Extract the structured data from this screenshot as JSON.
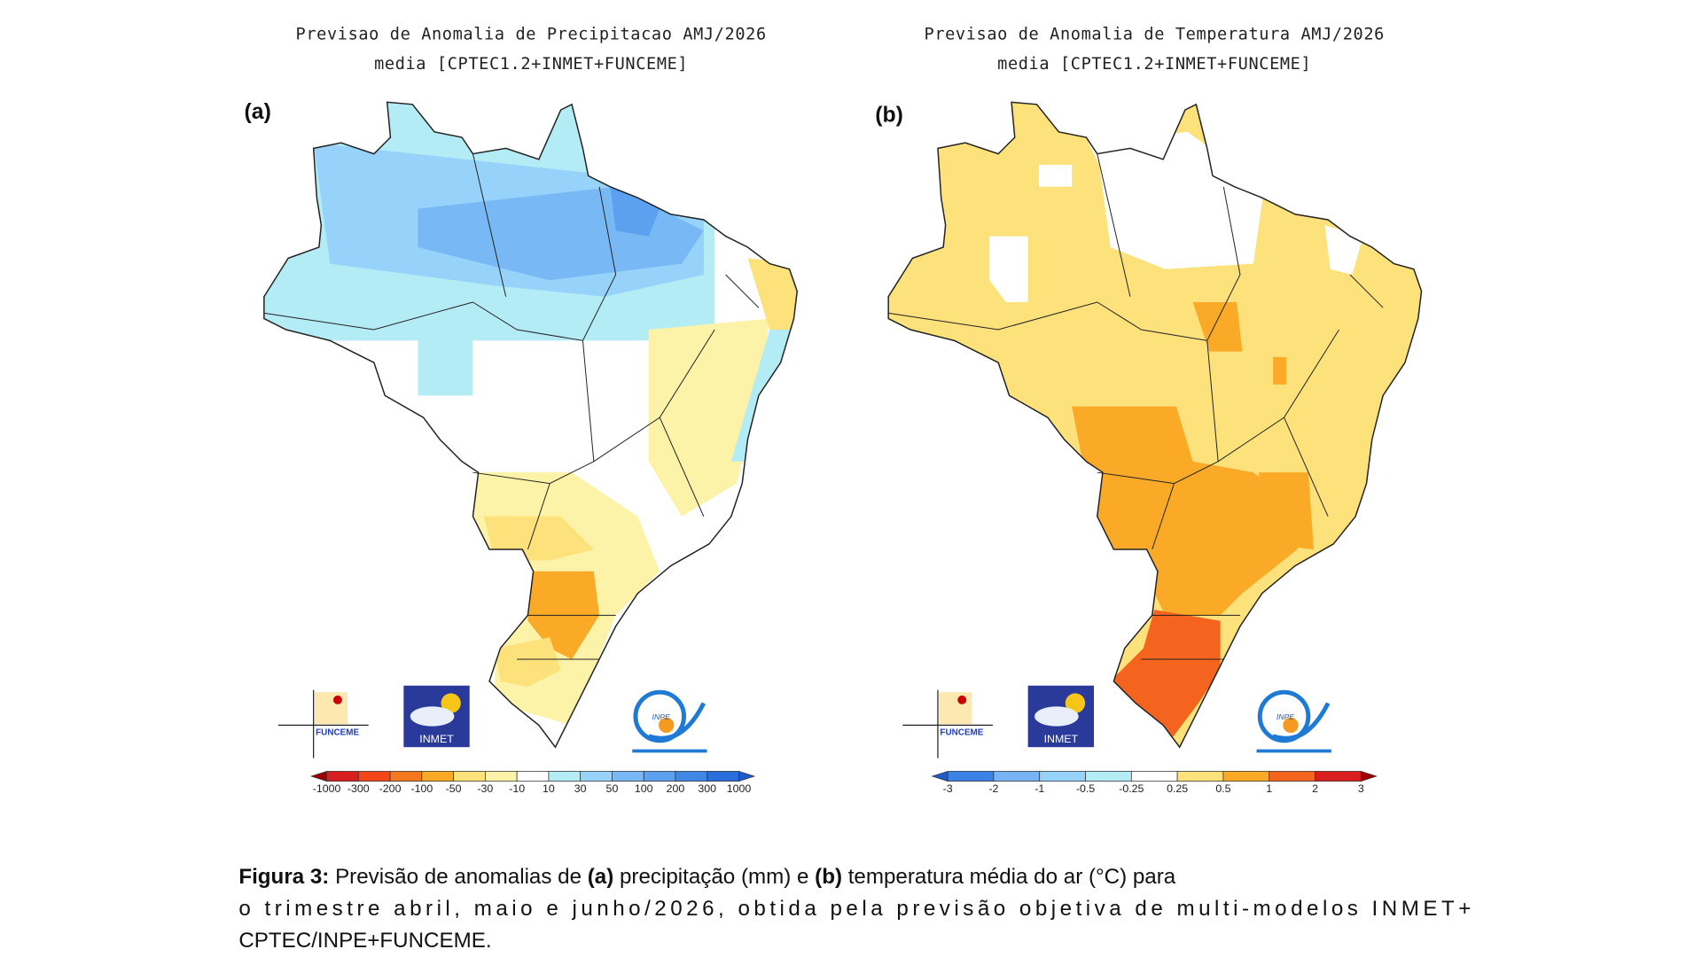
{
  "panel_a": {
    "label": "(a)",
    "title_line1": "Previsao de Anomalia de Precipitacao AMJ/2026",
    "title_line2": "media [CPTEC1.2+INMET+FUNCEME]",
    "colorbar": {
      "ticks": [
        "-1000",
        "-300",
        "-200",
        "-100",
        "-50",
        "-30",
        "-10",
        "10",
        "30",
        "50",
        "100",
        "200",
        "300",
        "1000"
      ],
      "colors": [
        "#a00000",
        "#d81e1e",
        "#f5461a",
        "#f5781e",
        "#fbaa28",
        "#fde17a",
        "#fdf3a8",
        "#ffffff",
        "#b4ecf6",
        "#96d2fa",
        "#78b9f5",
        "#5ca0f0",
        "#4187e6",
        "#2a6edc",
        "#1f5acb"
      ]
    }
  },
  "panel_b": {
    "label": "(b)",
    "title_line1": "Previsao de Anomalia de Temperatura AMJ/2026",
    "title_line2": "media [CPTEC1.2+INMET+FUNCEME]",
    "colorbar": {
      "ticks": [
        "-3",
        "-2",
        "-1",
        "-0.5",
        "-0.25",
        "0.25",
        "0.5",
        "1",
        "2",
        "3"
      ],
      "colors": [
        "#1f5acb",
        "#3c82e6",
        "#78b4f5",
        "#96d2fa",
        "#b4ecf6",
        "#ffffff",
        "#fde17a",
        "#fbaa28",
        "#f5641e",
        "#d81e1e",
        "#a00000"
      ]
    }
  },
  "logos": {
    "funceme": "FUNCEME",
    "inmet": "INMET",
    "inpe": "INPE"
  },
  "caption": {
    "figure": "Figura 3:",
    "t1": " Previsão de anomalias de ",
    "a": "(a)",
    "t2": " precipitação (mm) e ",
    "b": "(b)",
    "t3": " temperatura média do ar (°C) para",
    "line2": "o trimestre abril, maio e junho/2026, obtida pela previsão objetiva de multi-modelos INMET+",
    "line3": "CPTEC/INPE+FUNCEME."
  }
}
